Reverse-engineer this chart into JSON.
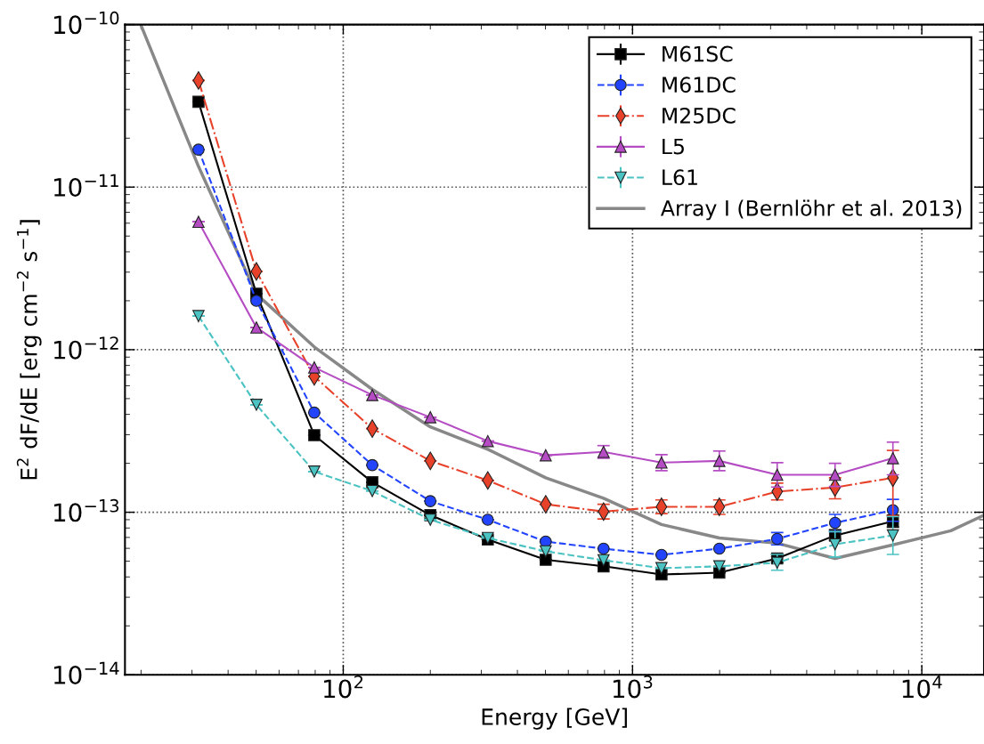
{
  "chart_data": {
    "type": "line",
    "xlabel": "Energy [GeV]",
    "ylabel": "E$^{2}$ dF/dE [erg cm$^{−2}$ s$^{−1}$]",
    "log": "xy",
    "xlim": [
      17.6,
      16400
    ],
    "ylim": [
      1e-14,
      1e-10
    ],
    "xticks": [
      {
        "value": 100,
        "label": "10$^{2}$"
      },
      {
        "value": 1000,
        "label": "10$^{3}$"
      },
      {
        "value": 10000,
        "label": "10$^{4}$"
      }
    ],
    "yticks": [
      {
        "value": 1e-14,
        "label": "10$^{−14}$"
      },
      {
        "value": 1e-13,
        "label": "10$^{−13}$"
      },
      {
        "value": 1e-12,
        "label": "10$^{−12}$"
      },
      {
        "value": 1e-11,
        "label": "10$^{−11}$"
      },
      {
        "value": 1e-10,
        "label": "10$^{−10}$"
      }
    ],
    "grid": true,
    "legend": "top right",
    "x": [
      31.6,
      50.1,
      79.4,
      126,
      200,
      316,
      501,
      794,
      1259,
      1995,
      3162,
      5012,
      7943
    ],
    "series": [
      {
        "name": "M61SC",
        "color": "#000000",
        "marker": "square",
        "line_style": "solid",
        "values": [
          3.35e-11,
          2.21e-12,
          2.98e-13,
          1.53e-13,
          9.6e-14,
          6.8e-14,
          5.1e-14,
          4.65e-14,
          4.14e-14,
          4.25e-14,
          5.2e-14,
          7.2e-14,
          8.8e-14
        ],
        "errors": [
          null,
          null,
          null,
          null,
          null,
          null,
          null,
          null,
          null,
          null,
          [
            4.9e-14,
            5.5e-14
          ],
          [
            6.7e-14,
            7.8e-14
          ],
          [
            8.1e-14,
            9.6e-14
          ]
        ]
      },
      {
        "name": "M61DC",
        "color": "#2244ff",
        "marker": "circle",
        "line_style": "dashed",
        "values": [
          1.7e-11,
          2e-12,
          4.1e-13,
          1.95e-13,
          1.17e-13,
          9e-14,
          6.6e-14,
          5.97e-14,
          5.47e-14,
          5.97e-14,
          6.86e-14,
          8.6e-14,
          1.03e-13
        ],
        "errors": [
          null,
          null,
          null,
          null,
          null,
          null,
          null,
          null,
          null,
          null,
          [
            6.3e-14,
            7.5e-14
          ],
          [
            7.6e-14,
            9.7e-14
          ],
          [
            8.8e-14,
            1.2e-13
          ]
        ]
      },
      {
        "name": "M25DC",
        "color": "#e8412a",
        "marker": "diamond",
        "line_style": "dashdot",
        "values": [
          4.53e-11,
          3.03e-12,
          6.85e-13,
          3.27e-13,
          2.07e-13,
          1.57e-13,
          1.12e-13,
          1.01e-13,
          1.08e-13,
          1.08e-13,
          1.34e-13,
          1.42e-13,
          1.63e-13
        ],
        "errors": [
          null,
          null,
          null,
          null,
          null,
          null,
          null,
          [
            9.1e-14,
            1.12e-13
          ],
          [
            9.8e-14,
            1.19e-13
          ],
          [
            9.7e-14,
            1.19e-13
          ],
          [
            1.19e-13,
            1.51e-13
          ],
          [
            1.21e-13,
            1.63e-13
          ],
          [
            9.5e-14,
            2.4e-13
          ]
        ]
      },
      {
        "name": "L5",
        "color": "#b54cc4",
        "marker": "triangle",
        "line_style": "solid",
        "values": [
          6.12e-12,
          1.37e-12,
          7.78e-13,
          5.26e-13,
          3.84e-13,
          2.74e-13,
          2.24e-13,
          2.35e-13,
          2.02e-13,
          2.07e-13,
          1.7e-13,
          1.7e-13,
          2.15e-13
        ],
        "errors": [
          null,
          null,
          null,
          null,
          null,
          null,
          null,
          [
            2.15e-13,
            2.57e-13
          ],
          [
            1.8e-13,
            2.26e-13
          ],
          [
            1.8e-13,
            2.38e-13
          ],
          [
            1.43e-13,
            2.02e-13
          ],
          [
            1.44e-13,
            2e-13
          ],
          [
            1.7e-13,
            2.7e-13
          ]
        ]
      },
      {
        "name": "L61",
        "color": "#4cc3c3",
        "marker": "triangle_down",
        "line_style": "dashed",
        "values": [
          1.61e-12,
          4.58e-13,
          1.78e-13,
          1.35e-13,
          9e-14,
          6.95e-14,
          5.75e-14,
          5.07e-14,
          4.53e-14,
          4.65e-14,
          4.89e-14,
          6.35e-14,
          7.2e-14
        ],
        "errors": [
          null,
          null,
          null,
          null,
          null,
          null,
          null,
          null,
          null,
          null,
          [
            4.4e-14,
            5.5e-14
          ],
          [
            5.3e-14,
            7.6e-14
          ],
          [
            5.5e-14,
            9.4e-14
          ]
        ]
      },
      {
        "name": "Array I (Bernlöhr et al. 2013)",
        "color": "#888888",
        "marker": "none",
        "line_style": "solid",
        "x": [
          19.95,
          31.6,
          50.1,
          79.4,
          126,
          200,
          316,
          501,
          794,
          1259,
          1995,
          3162,
          5012,
          7943,
          12589,
          16400
        ],
        "values": [
          1e-10,
          1.34e-11,
          2.2e-12,
          1.04e-12,
          5.7e-13,
          3.35e-13,
          2.44e-13,
          1.63e-13,
          1.22e-13,
          8.4e-14,
          6.95e-14,
          6.45e-14,
          5.2e-14,
          6.3e-14,
          7.7e-14,
          9.6e-14
        ]
      }
    ]
  }
}
